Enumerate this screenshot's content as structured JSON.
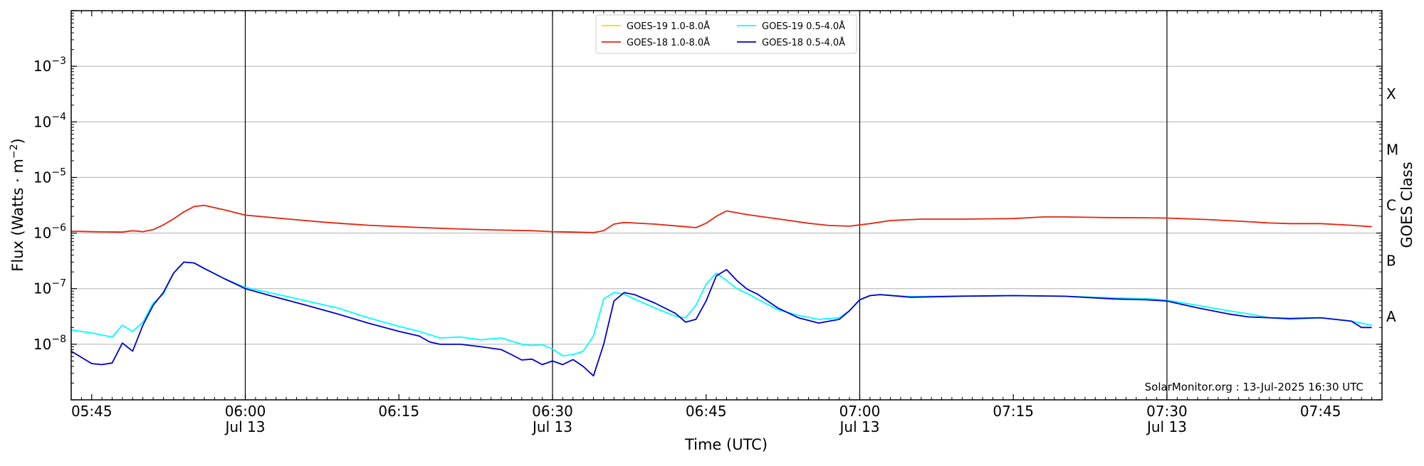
{
  "chart_data": {
    "type": "line",
    "ylabel": "Flux (Watts · m",
    "ylabel_superscript": "−2",
    "xlabel": "Time (UTC)",
    "right_label": "GOES Class",
    "credit": "SolarMonitor.org : 13-Jul-2025 16:30 UTC",
    "y_scale": "log",
    "ylim": [
      1e-09,
      0.01
    ],
    "xlim": [
      "05:43",
      "07:51"
    ],
    "grid": "horizontal at decades",
    "legend_placement": "top-center",
    "y_ticks": [
      {
        "value": -8,
        "label_base": "10",
        "label_exp": "−8"
      },
      {
        "value": -7,
        "label_base": "10",
        "label_exp": "−7"
      },
      {
        "value": -6,
        "label_base": "10",
        "label_exp": "−6"
      },
      {
        "value": -5,
        "label_base": "10",
        "label_exp": "−5"
      },
      {
        "value": -4,
        "label_base": "10",
        "label_exp": "−4"
      },
      {
        "value": -3,
        "label_base": "10",
        "label_exp": "−3"
      }
    ],
    "x_ticks": [
      {
        "time": "05:45",
        "label": "05:45",
        "date": ""
      },
      {
        "time": "06:00",
        "label": "06:00",
        "date": "Jul 13"
      },
      {
        "time": "06:15",
        "label": "06:15",
        "date": ""
      },
      {
        "time": "06:30",
        "label": "06:30",
        "date": "Jul 13"
      },
      {
        "time": "06:45",
        "label": "06:45",
        "date": ""
      },
      {
        "time": "07:00",
        "label": "07:00",
        "date": "Jul 13"
      },
      {
        "time": "07:15",
        "label": "07:15",
        "date": ""
      },
      {
        "time": "07:30",
        "label": "07:30",
        "date": "Jul 13"
      },
      {
        "time": "07:45",
        "label": "07:45",
        "date": ""
      }
    ],
    "vlines": [
      "06:00",
      "06:30",
      "07:00",
      "07:30"
    ],
    "goes_classes": [
      {
        "label": "A",
        "log_flux": -7.5
      },
      {
        "label": "B",
        "log_flux": -6.5
      },
      {
        "label": "C",
        "log_flux": -5.5
      },
      {
        "label": "M",
        "log_flux": -4.5
      },
      {
        "label": "X",
        "log_flux": -3.5
      }
    ],
    "legend": [
      {
        "name": "GOES-19 1.0-8.0Å",
        "color": "#FFD700",
        "column": 0
      },
      {
        "name": "GOES-18 1.0-8.0Å",
        "color": "#E8240C",
        "column": 0
      },
      {
        "name": "GOES-19 0.5-4.0Å",
        "color": "#00FFFF",
        "column": 1
      },
      {
        "name": "GOES-18 0.5-4.0Å",
        "color": "#0000CD",
        "column": 1
      }
    ],
    "series": [
      {
        "name": "GOES-18 1.0-8.0Å",
        "color": "#E8240C",
        "x": [
          "05:43",
          "05:46",
          "05:48",
          "05:49",
          "05:50",
          "05:51",
          "05:52",
          "05:53",
          "05:54",
          "05:55",
          "05:56",
          "05:58",
          "06:00",
          "06:04",
          "06:08",
          "06:12",
          "06:16",
          "06:20",
          "06:24",
          "06:28",
          "06:30",
          "06:32",
          "06:34",
          "06:35",
          "06:36",
          "06:37",
          "06:40",
          "06:43",
          "06:44",
          "06:45",
          "06:46",
          "06:47",
          "06:49",
          "06:52",
          "06:55",
          "06:57",
          "06:59",
          "07:01",
          "07:03",
          "07:06",
          "07:10",
          "07:15",
          "07:18",
          "07:20",
          "07:24",
          "07:28",
          "07:30",
          "07:34",
          "07:38",
          "07:40",
          "07:42",
          "07:45",
          "07:48",
          "07:50"
        ],
        "values": [
          1.08e-06,
          1.05e-06,
          1.04e-06,
          1.1e-06,
          1.06e-06,
          1.15e-06,
          1.4e-06,
          1.8e-06,
          2.4e-06,
          3e-06,
          3.15e-06,
          2.6e-06,
          2.1e-06,
          1.8e-06,
          1.55e-06,
          1.38e-06,
          1.28e-06,
          1.2e-06,
          1.14e-06,
          1.1e-06,
          1.06e-06,
          1.04e-06,
          1.02e-06,
          1.1e-06,
          1.45e-06,
          1.55e-06,
          1.45e-06,
          1.3e-06,
          1.25e-06,
          1.5e-06,
          2e-06,
          2.5e-06,
          2.15e-06,
          1.8e-06,
          1.5e-06,
          1.37e-06,
          1.33e-06,
          1.48e-06,
          1.68e-06,
          1.78e-06,
          1.78e-06,
          1.82e-06,
          1.95e-06,
          1.95e-06,
          1.9e-06,
          1.88e-06,
          1.86e-06,
          1.75e-06,
          1.6e-06,
          1.52e-06,
          1.48e-06,
          1.48e-06,
          1.38e-06,
          1.3e-06
        ]
      },
      {
        "name": "GOES-19 0.5-4.0Å",
        "color": "#00FFFF",
        "x": [
          "05:43",
          "05:45",
          "05:47",
          "05:48",
          "05:49",
          "05:50",
          "05:51",
          "05:52",
          "05:53",
          "05:54",
          "05:55",
          "05:56",
          "05:58",
          "06:00",
          "06:03",
          "06:06",
          "06:09",
          "06:12",
          "06:15",
          "06:17",
          "06:19",
          "06:21",
          "06:23",
          "06:25",
          "06:27",
          "06:28",
          "06:29",
          "06:30",
          "06:31",
          "06:32",
          "06:33",
          "06:34",
          "06:35",
          "06:36",
          "06:37",
          "06:38",
          "06:40",
          "06:42",
          "06:43",
          "06:44",
          "06:45",
          "06:46",
          "06:47",
          "06:48",
          "06:49",
          "06:50",
          "06:52",
          "06:54",
          "06:56",
          "06:58",
          "06:59",
          "07:00",
          "07:01",
          "07:02",
          "07:05",
          "07:10",
          "07:15",
          "07:20",
          "07:25",
          "07:28",
          "07:30",
          "07:33",
          "07:36",
          "07:38",
          "07:40",
          "07:42",
          "07:45",
          "07:48",
          "07:50"
        ],
        "values": [
          1.8e-08,
          1.6e-08,
          1.35e-08,
          2.2e-08,
          1.7e-08,
          2.5e-08,
          5.5e-08,
          8e-08,
          1.9e-07,
          3e-07,
          2.9e-07,
          2.3e-07,
          1.5e-07,
          1.05e-07,
          8e-08,
          6e-08,
          4.5e-08,
          3e-08,
          2.1e-08,
          1.7e-08,
          1.3e-08,
          1.35e-08,
          1.2e-08,
          1.3e-08,
          1e-08,
          9.5e-09,
          9.8e-09,
          8.2e-09,
          6.2e-09,
          6.5e-09,
          7.5e-09,
          1.4e-08,
          6.5e-08,
          8.5e-08,
          8e-08,
          6.5e-08,
          4.5e-08,
          3.2e-08,
          3e-08,
          5e-08,
          1.2e-07,
          1.9e-07,
          1.4e-07,
          1e-07,
          8.2e-08,
          6.5e-08,
          4.2e-08,
          3.3e-08,
          2.8e-08,
          3e-08,
          4e-08,
          6.3e-08,
          7.5e-08,
          7.8e-08,
          7.2e-08,
          7.4e-08,
          7.5e-08,
          7.3e-08,
          6.8e-08,
          6.6e-08,
          6.2e-08,
          5e-08,
          4e-08,
          3.5e-08,
          3e-08,
          2.8e-08,
          3e-08,
          2.6e-08,
          2.2e-08
        ]
      },
      {
        "name": "GOES-18 0.5-4.0Å",
        "color": "#0000CD",
        "x": [
          "05:43",
          "05:45",
          "05:46",
          "05:47",
          "05:48",
          "05:49",
          "05:50",
          "05:51",
          "05:52",
          "05:53",
          "05:54",
          "05:55",
          "05:56",
          "05:58",
          "06:00",
          "06:03",
          "06:06",
          "06:09",
          "06:12",
          "06:15",
          "06:17",
          "06:18",
          "06:19",
          "06:21",
          "06:23",
          "06:25",
          "06:26",
          "06:27",
          "06:28",
          "06:29",
          "06:30",
          "06:31",
          "06:32",
          "06:33",
          "06:34",
          "06:35",
          "06:36",
          "06:37",
          "06:38",
          "06:40",
          "06:42",
          "06:43",
          "06:44",
          "06:45",
          "06:46",
          "06:47",
          "06:48",
          "06:49",
          "06:50",
          "06:52",
          "06:54",
          "06:56",
          "06:58",
          "06:59",
          "07:00",
          "07:01",
          "07:02",
          "07:05",
          "07:10",
          "07:15",
          "07:20",
          "07:25",
          "07:28",
          "07:30",
          "07:33",
          "07:36",
          "07:38",
          "07:40",
          "07:42",
          "07:45",
          "07:48",
          "07:49",
          "07:50"
        ],
        "values": [
          7.5e-09,
          4.5e-09,
          4.3e-09,
          4.6e-09,
          1.05e-08,
          7.5e-09,
          2.2e-08,
          5e-08,
          8.5e-08,
          1.9e-07,
          3e-07,
          2.9e-07,
          2.3e-07,
          1.5e-07,
          1e-07,
          7e-08,
          5e-08,
          3.5e-08,
          2.4e-08,
          1.7e-08,
          1.4e-08,
          1.1e-08,
          1e-08,
          1e-08,
          9e-09,
          8e-09,
          6.5e-09,
          5.2e-09,
          5.4e-09,
          4.3e-09,
          5e-09,
          4.3e-09,
          5.3e-09,
          4e-09,
          2.7e-09,
          1e-08,
          6e-08,
          8.5e-08,
          7.8e-08,
          5.5e-08,
          3.6e-08,
          2.5e-08,
          2.8e-08,
          6e-08,
          1.7e-07,
          2.2e-07,
          1.4e-07,
          9.8e-08,
          8e-08,
          4.5e-08,
          3e-08,
          2.4e-08,
          2.8e-08,
          4e-08,
          6.3e-08,
          7.5e-08,
          7.8e-08,
          7e-08,
          7.3e-08,
          7.5e-08,
          7.3e-08,
          6.5e-08,
          6.3e-08,
          6e-08,
          4.5e-08,
          3.5e-08,
          3.1e-08,
          3e-08,
          2.9e-08,
          3e-08,
          2.6e-08,
          2e-08,
          2e-08
        ]
      }
    ]
  }
}
